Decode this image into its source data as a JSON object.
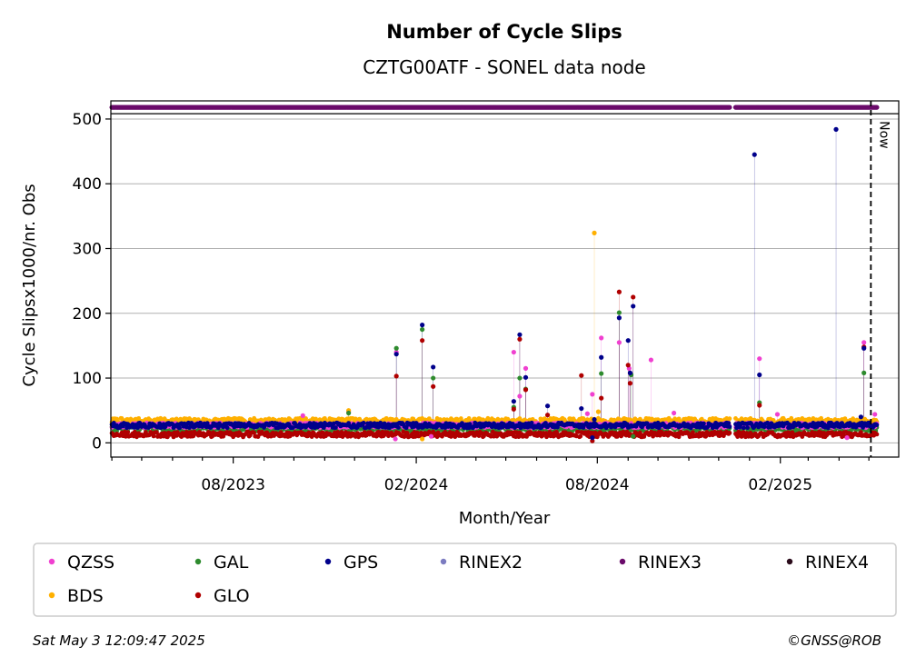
{
  "chart_data": {
    "type": "scatter",
    "title": "Number of Cycle Slips",
    "subtitle": "CZTG00ATF - SONEL data node",
    "xlabel": "Month/Year",
    "ylabel": "Cycle Slipsx1000/nr. Obs",
    "ylim": [
      -22,
      528
    ],
    "xlim": [
      "2023-03-31",
      "2025-05-31"
    ],
    "yticks": [
      0,
      100,
      200,
      300,
      400,
      500
    ],
    "xtick_labels": [
      {
        "date": "2023-08-01",
        "label": "08/2023"
      },
      {
        "date": "2024-02-01",
        "label": "02/2024"
      },
      {
        "date": "2024-08-01",
        "label": "08/2024"
      },
      {
        "date": "2025-02-01",
        "label": "02/2025"
      }
    ],
    "now_date": "2025-05-03",
    "now_label": "Now",
    "grid": "y",
    "legend_position": "bottom",
    "data_gap": [
      "2024-12-13",
      "2024-12-17"
    ],
    "series": [
      {
        "name": "QZSS",
        "color": "#f040d0",
        "baseline": 27,
        "spikes": [
          [
            "2023-10-10",
            42
          ],
          [
            "2023-11-25",
            48
          ],
          [
            "2024-01-11",
            6
          ],
          [
            "2024-01-12",
            140
          ],
          [
            "2024-02-16",
            10
          ],
          [
            "2024-05-09",
            140
          ],
          [
            "2024-05-15",
            72
          ],
          [
            "2024-05-21",
            115
          ],
          [
            "2024-07-22",
            45
          ],
          [
            "2024-07-27",
            75
          ],
          [
            "2024-08-05",
            162
          ],
          [
            "2024-08-23",
            155
          ],
          [
            "2024-09-02",
            115
          ],
          [
            "2024-09-24",
            128
          ],
          [
            "2024-10-17",
            46
          ],
          [
            "2025-01-11",
            130
          ],
          [
            "2025-01-29",
            44
          ],
          [
            "2025-04-09",
            8
          ],
          [
            "2025-04-26",
            155
          ],
          [
            "2025-05-07",
            44
          ]
        ]
      },
      {
        "name": "BDS",
        "color": "#ffb000",
        "baseline": 34,
        "spikes": [
          [
            "2023-11-25",
            50
          ],
          [
            "2024-02-07",
            6
          ],
          [
            "2024-07-29",
            324
          ],
          [
            "2024-08-02",
            48
          ]
        ]
      },
      {
        "name": "GAL",
        "color": "#2e8b2e",
        "baseline": 22,
        "spikes": [
          [
            "2023-11-25",
            46
          ],
          [
            "2024-01-12",
            146
          ],
          [
            "2024-02-07",
            175
          ],
          [
            "2024-02-18",
            100
          ],
          [
            "2024-05-09",
            55
          ],
          [
            "2024-05-15",
            100
          ],
          [
            "2024-05-21",
            83
          ],
          [
            "2024-08-05",
            107
          ],
          [
            "2024-08-23",
            201
          ],
          [
            "2024-09-04",
            105
          ],
          [
            "2024-09-06",
            10
          ],
          [
            "2025-01-11",
            62
          ],
          [
            "2025-04-26",
            108
          ]
        ]
      },
      {
        "name": "GLO",
        "color": "#b00000",
        "baseline": 13,
        "spikes": [
          [
            "2024-01-12",
            103
          ],
          [
            "2024-02-07",
            158
          ],
          [
            "2024-02-18",
            87
          ],
          [
            "2024-05-09",
            52
          ],
          [
            "2024-05-15",
            160
          ],
          [
            "2024-05-21",
            82
          ],
          [
            "2024-06-12",
            43
          ],
          [
            "2024-07-16",
            104
          ],
          [
            "2024-07-27",
            3
          ],
          [
            "2024-08-05",
            69
          ],
          [
            "2024-08-23",
            233
          ],
          [
            "2024-09-01",
            120
          ],
          [
            "2024-09-03",
            92
          ],
          [
            "2024-09-06",
            225
          ],
          [
            "2025-01-11",
            58
          ],
          [
            "2025-04-26",
            148
          ]
        ]
      },
      {
        "name": "GPS",
        "color": "#00008b",
        "baseline": 27,
        "spikes": [
          [
            "2024-01-12",
            137
          ],
          [
            "2024-02-07",
            182
          ],
          [
            "2024-02-18",
            117
          ],
          [
            "2024-05-09",
            64
          ],
          [
            "2024-05-15",
            167
          ],
          [
            "2024-05-21",
            101
          ],
          [
            "2024-06-12",
            57
          ],
          [
            "2024-07-16",
            53
          ],
          [
            "2024-07-27",
            8
          ],
          [
            "2024-07-29",
            36
          ],
          [
            "2024-08-05",
            132
          ],
          [
            "2024-08-23",
            193
          ],
          [
            "2024-09-01",
            158
          ],
          [
            "2024-09-03",
            108
          ],
          [
            "2024-09-06",
            211
          ],
          [
            "2025-01-06",
            445
          ],
          [
            "2025-01-11",
            105
          ],
          [
            "2025-03-29",
            484
          ],
          [
            "2025-04-23",
            40
          ],
          [
            "2025-04-26",
            146
          ]
        ]
      },
      {
        "name": "RINEX2",
        "color": "#7b7bc0",
        "spikes": []
      },
      {
        "name": "RINEX3",
        "color": "#6a0a6a",
        "track_value": 518
      },
      {
        "name": "RINEX4",
        "color": "#2a0a1a",
        "spikes": []
      }
    ]
  },
  "footer": {
    "timestamp": "Sat May  3 12:09:47 2025",
    "credit": "©GNSS@ROB"
  }
}
